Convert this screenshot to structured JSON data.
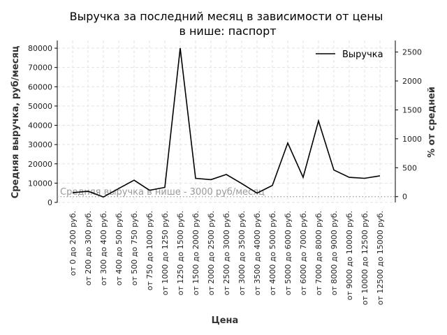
{
  "chart_data": {
    "type": "line",
    "title_line1": "Выручка за последний месяц в зависимости от цены",
    "title_line2": "в нише: паспорт",
    "xlabel": "Цена",
    "ylabel_left": "Средняя выручка, руб/месяц",
    "ylabel_right": "% от средней",
    "ylim_left": [
      0,
      84000
    ],
    "ylim_right": [
      -100,
      2700
    ],
    "yticks_left": [
      0,
      10000,
      20000,
      30000,
      40000,
      50000,
      60000,
      70000,
      80000
    ],
    "yticks_right": [
      0,
      500,
      1000,
      1500,
      2000,
      2500
    ],
    "grid": true,
    "legend_position": "top-right",
    "categories": [
      "от 0 до 200 руб.",
      "от 200 до 300 руб.",
      "от 300 до 400 руб.",
      "от 400 до 500 руб.",
      "от 500 до 750 руб.",
      "от 750 до 1000 руб.",
      "от 1000 до 1250 руб.",
      "от 1250 до 1500 руб.",
      "от 1500 до 2000 руб.",
      "от 2000 до 2500 руб.",
      "от 2500 до 3000 руб.",
      "от 3000 до 3500 руб.",
      "от 3500 до 4000 руб.",
      "от 4000 до 5000 руб.",
      "от 5000 до 6000 руб.",
      "от 6000 до 7000 руб.",
      "от 7000 до 8000 руб.",
      "от 8000 до 9000 руб.",
      "от 9000 до 10000 руб.",
      "от 10000 до 12500 руб.",
      "от 12500 до 15000 руб."
    ],
    "series": [
      {
        "name": "Выручка",
        "color": "#000000",
        "values": [
          5000,
          5800,
          2800,
          7200,
          11500,
          6300,
          7800,
          80000,
          12500,
          11800,
          14500,
          9800,
          4800,
          8800,
          30800,
          13000,
          42300,
          16800,
          13000,
          12500,
          13800
        ]
      }
    ],
    "reference_line": {
      "value": 3000,
      "label": "Средняя выручка в нише - 3000 руб/месяц",
      "color": "#999999"
    }
  }
}
